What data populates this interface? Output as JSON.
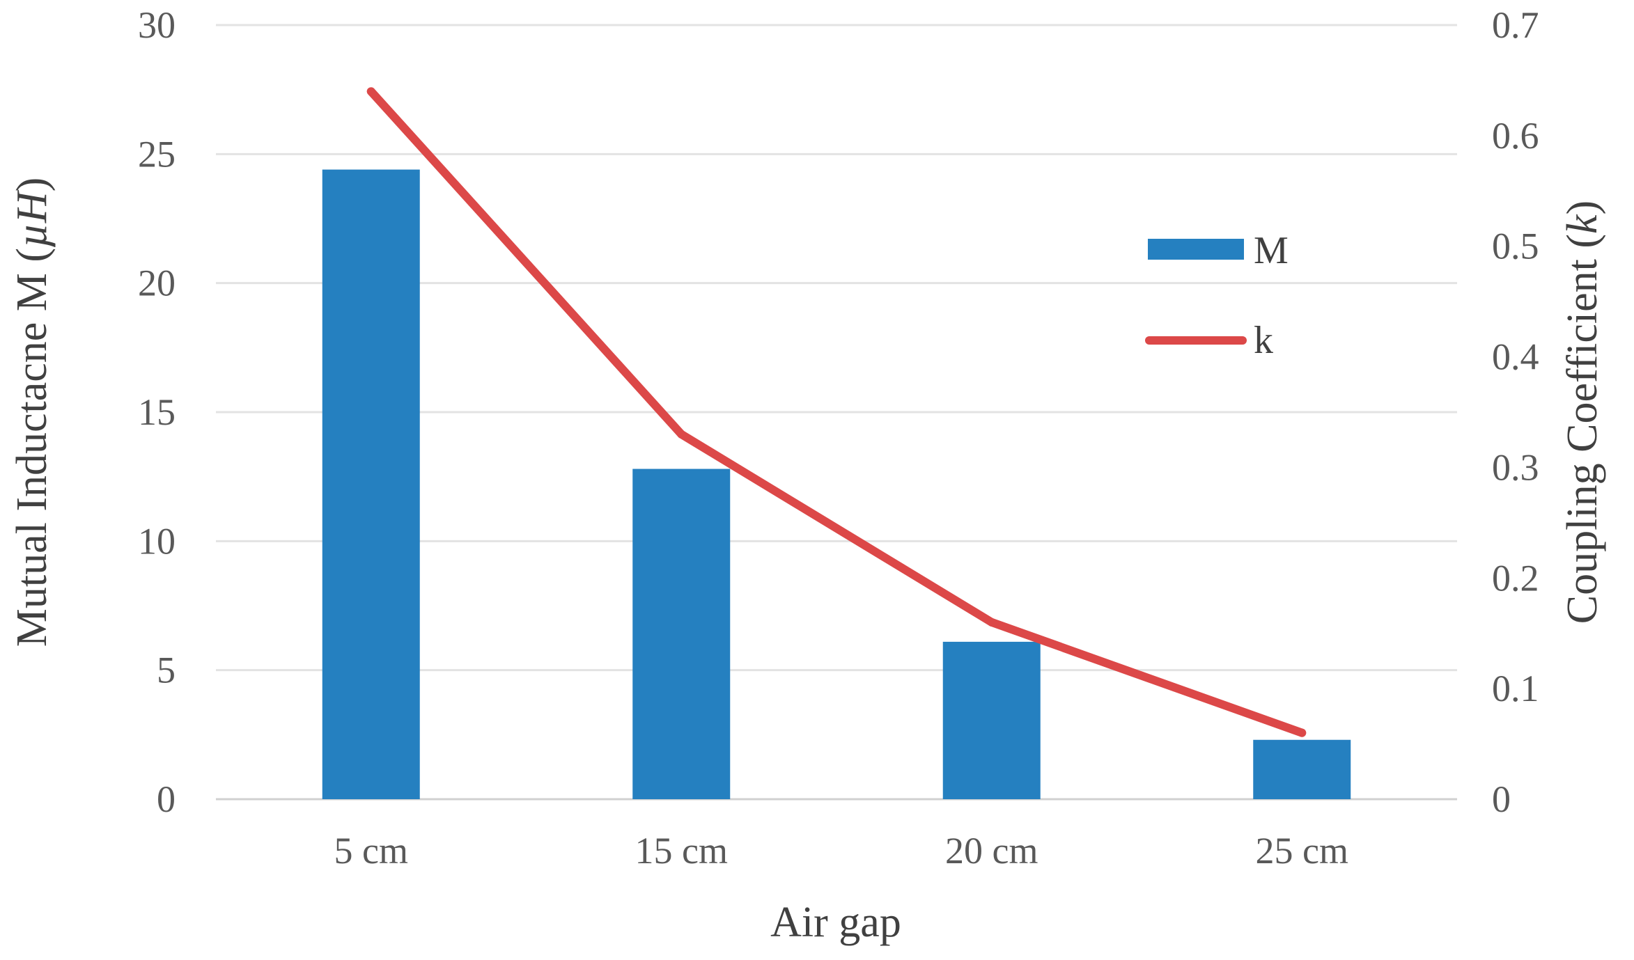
{
  "chart_data": {
    "type": "bar",
    "categories": [
      "5 cm",
      "15 cm",
      "20 cm",
      "25 cm"
    ],
    "series": [
      {
        "name": "M",
        "type": "bar",
        "axis": "left",
        "color": "#2580c0",
        "values": [
          24.4,
          12.8,
          6.1,
          2.3
        ]
      },
      {
        "name": "k",
        "type": "line",
        "axis": "right",
        "color": "#dc4848",
        "values": [
          0.64,
          0.33,
          0.16,
          0.06
        ]
      }
    ],
    "xlabel": "Air gap",
    "ylabel_main": "Mutual Inductacne M (",
    "ylabel_unit": "µH",
    "ylabel_close": ")",
    "y2label_main": "Coupling Coefficient (",
    "y2label_unit": "k",
    "y2label_close": ")",
    "ylim": [
      0,
      30
    ],
    "y2lim": [
      0,
      0.7
    ],
    "yticks": [
      "0",
      "5",
      "10",
      "15",
      "20",
      "25",
      "30"
    ],
    "y2ticks": [
      "0",
      "0.1",
      "0.2",
      "0.3",
      "0.4",
      "0.5",
      "0.6",
      "0.7"
    ],
    "grid": true,
    "legend_position": "right"
  }
}
